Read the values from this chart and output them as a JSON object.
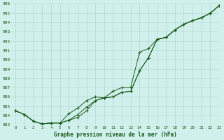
{
  "title": "Graphe pression niveau de la mer (hPa)",
  "bg_color": "#d0f0ec",
  "grid_color": "#b0d8d0",
  "line_color": "#1a5c1a",
  "xlim": [
    -0.5,
    23
  ],
  "ylim": [
    983,
    996
  ],
  "yticks": [
    983,
    984,
    985,
    986,
    987,
    988,
    989,
    990,
    991,
    992,
    993,
    994,
    995,
    996
  ],
  "xticks": [
    0,
    1,
    2,
    3,
    4,
    5,
    6,
    7,
    8,
    9,
    10,
    11,
    12,
    13,
    14,
    15,
    16,
    17,
    18,
    19,
    20,
    21,
    22,
    23
  ],
  "series1": [
    984.5,
    984.1,
    983.4,
    983.1,
    983.2,
    983.2,
    983.5,
    984.1,
    984.9,
    985.6,
    985.9,
    986.0,
    986.5,
    986.6,
    988.8,
    990.2,
    992.2,
    992.4,
    993.2,
    993.8,
    994.2,
    994.5,
    995.0,
    995.8
  ],
  "series2": [
    984.5,
    984.1,
    983.4,
    983.1,
    983.2,
    983.2,
    984.2,
    984.8,
    985.6,
    986.0,
    985.9,
    986.6,
    987.0,
    987.0,
    990.8,
    991.2,
    992.2,
    992.4,
    993.2,
    993.8,
    994.2,
    994.5,
    995.0,
    995.8
  ],
  "series3": [
    984.5,
    984.1,
    983.4,
    983.1,
    983.2,
    983.2,
    983.5,
    983.8,
    984.5,
    985.6,
    985.9,
    986.0,
    986.5,
    986.6,
    988.8,
    990.2,
    992.2,
    992.4,
    993.2,
    993.8,
    994.2,
    994.5,
    995.0,
    995.8
  ]
}
